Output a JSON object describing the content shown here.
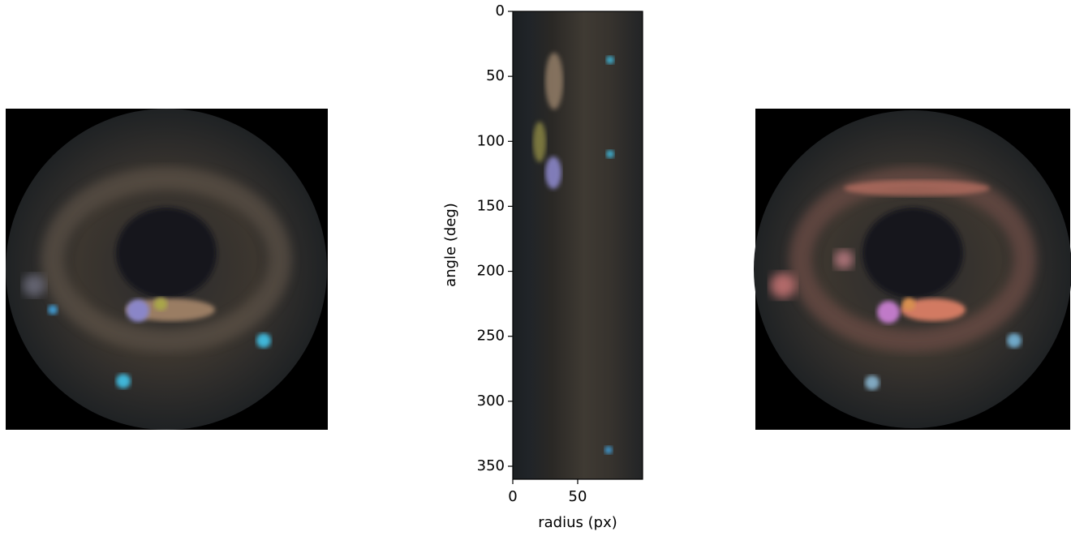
{
  "chart_data": {
    "type": "image",
    "xlabel": "radius (px)",
    "ylabel": "angle (deg)",
    "xlim": [
      0,
      100
    ],
    "xticks": [
      0,
      50
    ],
    "ylim": [
      360,
      0
    ],
    "yticks": [
      0,
      50,
      100,
      150,
      200,
      250,
      300,
      350
    ]
  }
}
